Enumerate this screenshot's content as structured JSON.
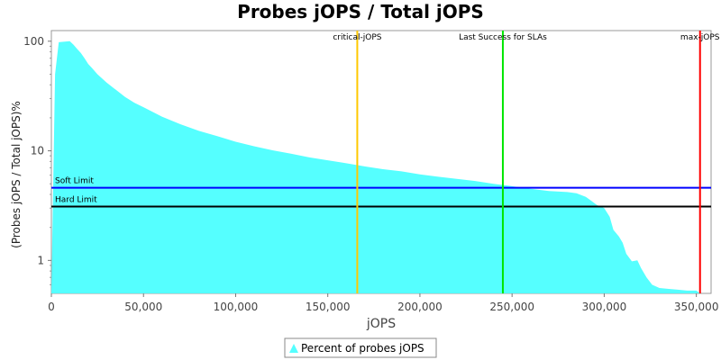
{
  "chart_data": {
    "type": "area",
    "title": "Probes jOPS / Total jOPS",
    "xlabel": "jOPS",
    "ylabel": "(Probes jOPS / Total jOPS)%",
    "y_scale": "log",
    "xlim": [
      0,
      358000
    ],
    "ylim": [
      0.5,
      125
    ],
    "x_ticks": [
      0,
      50000,
      100000,
      150000,
      200000,
      250000,
      300000,
      350000
    ],
    "x_tick_labels": [
      "0",
      "50,000",
      "100,000",
      "150,000",
      "200,000",
      "250,000",
      "300,000",
      "350,000"
    ],
    "y_ticks": [
      1,
      10,
      100
    ],
    "y_tick_labels": [
      "1",
      "10",
      "100"
    ],
    "grid": false,
    "legend_position": "bottom",
    "series": [
      {
        "name": "Percent of probes jOPS",
        "color": "#55ffff",
        "x": [
          0,
          2000,
          4000,
          10000,
          12000,
          14000,
          16000,
          18000,
          20000,
          22000,
          25000,
          30000,
          35000,
          40000,
          45000,
          50000,
          60000,
          70000,
          80000,
          90000,
          100000,
          110000,
          120000,
          130000,
          140000,
          150000,
          160000,
          170000,
          180000,
          190000,
          200000,
          210000,
          220000,
          230000,
          240000,
          250000,
          260000,
          270000,
          280000,
          285000,
          290000,
          293000,
          296000,
          300000,
          303000,
          305000,
          308000,
          310000,
          312000,
          315000,
          318000,
          320000,
          323000,
          326000,
          330000,
          335000,
          340000,
          345000,
          350000,
          352000
        ],
        "values": [
          0.5,
          50,
          98,
          100,
          93,
          85,
          78,
          70,
          62,
          57,
          50,
          42,
          36,
          31,
          27.5,
          25,
          20.5,
          17.5,
          15.2,
          13.6,
          12.1,
          11,
          10.1,
          9.4,
          8.7,
          8.2,
          7.7,
          7.2,
          6.8,
          6.5,
          6.1,
          5.8,
          5.55,
          5.3,
          5.0,
          4.75,
          4.5,
          4.3,
          4.2,
          4.1,
          3.8,
          3.5,
          3.2,
          3.0,
          2.5,
          1.9,
          1.65,
          1.45,
          1.15,
          0.98,
          1.0,
          0.85,
          0.7,
          0.6,
          0.56,
          0.55,
          0.54,
          0.53,
          0.53,
          0.5
        ]
      }
    ],
    "reference_lines": [
      {
        "orientation": "horizontal",
        "value": 4.6,
        "label": "Soft Limit",
        "color": "#0000ff"
      },
      {
        "orientation": "horizontal",
        "value": 3.1,
        "label": "Hard Limit",
        "color": "#000000"
      },
      {
        "orientation": "vertical",
        "value": 166000,
        "label": "critical-jOPS",
        "color": "#ffc800"
      },
      {
        "orientation": "vertical",
        "value": 245000,
        "label": "Last Success for SLAs",
        "color": "#00e600"
      },
      {
        "orientation": "vertical",
        "value": 352000,
        "label": "max-jOPS",
        "color": "#ff0000"
      }
    ]
  }
}
